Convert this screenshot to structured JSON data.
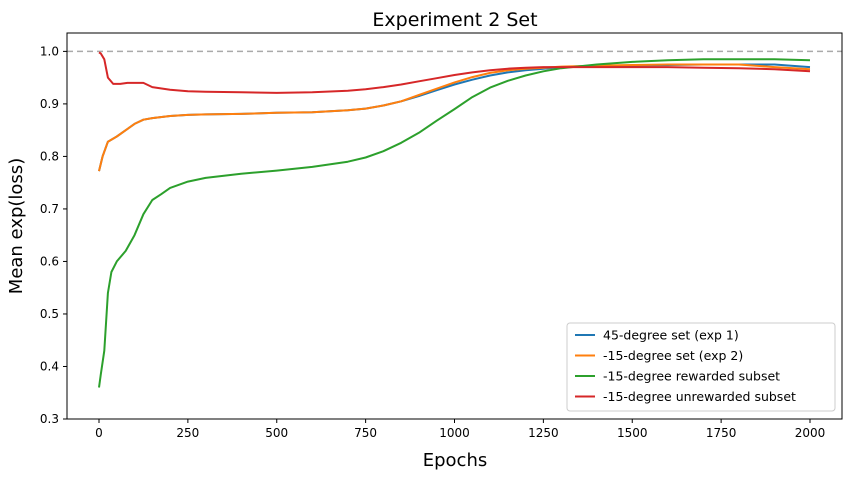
{
  "chart_data": {
    "type": "line",
    "title": "Experiment 2 Set",
    "xlabel": "Epochs",
    "ylabel": "Mean exp(loss)",
    "xlim": [
      -90,
      2090
    ],
    "ylim": [
      0.3,
      1.035
    ],
    "xticks": [
      0,
      250,
      500,
      750,
      1000,
      1250,
      1500,
      1750,
      2000
    ],
    "yticks": [
      0.3,
      0.4,
      0.5,
      0.6,
      0.7,
      0.8,
      0.9,
      1.0
    ],
    "xtick_labels": [
      "0",
      "250",
      "500",
      "750",
      "1000",
      "1250",
      "1500",
      "1750",
      "2000"
    ],
    "ytick_labels": [
      "0.3",
      "0.4",
      "0.5",
      "0.6",
      "0.7",
      "0.8",
      "0.9",
      "1.0"
    ],
    "reference_line": {
      "y": 1.0,
      "style": "dashed",
      "color": "#aaaaaa"
    },
    "grid": false,
    "legend_position": "bottom-right",
    "series": [
      {
        "name": "45-degree set (exp 1)",
        "color": "#1f77b4",
        "x": [
          0,
          10,
          25,
          50,
          75,
          100,
          125,
          150,
          200,
          250,
          300,
          400,
          500,
          600,
          700,
          750,
          800,
          850,
          900,
          950,
          1000,
          1050,
          1100,
          1150,
          1200,
          1250,
          1300,
          1400,
          1500,
          1600,
          1700,
          1800,
          1900,
          2000
        ],
        "y": [
          0.772,
          0.8,
          0.828,
          0.838,
          0.85,
          0.862,
          0.87,
          0.873,
          0.877,
          0.879,
          0.88,
          0.881,
          0.883,
          0.884,
          0.888,
          0.891,
          0.897,
          0.905,
          0.915,
          0.926,
          0.937,
          0.946,
          0.954,
          0.96,
          0.964,
          0.967,
          0.97,
          0.972,
          0.973,
          0.974,
          0.975,
          0.975,
          0.975,
          0.97
        ]
      },
      {
        "name": "-15-degree set (exp 2)",
        "color": "#ff7f0e",
        "x": [
          0,
          10,
          25,
          50,
          75,
          100,
          125,
          150,
          200,
          250,
          300,
          400,
          500,
          600,
          700,
          750,
          800,
          850,
          900,
          950,
          1000,
          1050,
          1100,
          1150,
          1200,
          1250,
          1300,
          1400,
          1500,
          1600,
          1700,
          1800,
          1900,
          2000
        ],
        "y": [
          0.772,
          0.8,
          0.828,
          0.838,
          0.85,
          0.862,
          0.87,
          0.873,
          0.877,
          0.879,
          0.88,
          0.881,
          0.883,
          0.884,
          0.888,
          0.891,
          0.897,
          0.905,
          0.917,
          0.929,
          0.941,
          0.951,
          0.959,
          0.964,
          0.967,
          0.969,
          0.971,
          0.973,
          0.974,
          0.975,
          0.975,
          0.975,
          0.97,
          0.966
        ]
      },
      {
        "name": "-15-degree rewarded subset",
        "color": "#2ca02c",
        "x": [
          0,
          5,
          15,
          25,
          35,
          50,
          75,
          100,
          125,
          150,
          175,
          200,
          250,
          300,
          400,
          500,
          600,
          700,
          750,
          800,
          850,
          900,
          950,
          1000,
          1050,
          1100,
          1150,
          1200,
          1250,
          1300,
          1400,
          1500,
          1600,
          1700,
          1800,
          1900,
          2000
        ],
        "y": [
          0.36,
          0.385,
          0.43,
          0.54,
          0.58,
          0.6,
          0.62,
          0.65,
          0.69,
          0.717,
          0.728,
          0.74,
          0.752,
          0.759,
          0.767,
          0.773,
          0.78,
          0.79,
          0.798,
          0.81,
          0.826,
          0.845,
          0.868,
          0.89,
          0.913,
          0.931,
          0.944,
          0.954,
          0.962,
          0.968,
          0.975,
          0.98,
          0.983,
          0.985,
          0.985,
          0.985,
          0.983
        ]
      },
      {
        "name": "-15-degree unrewarded subset",
        "color": "#d62728",
        "x": [
          0,
          5,
          15,
          25,
          40,
          60,
          80,
          100,
          125,
          150,
          200,
          250,
          300,
          400,
          500,
          600,
          700,
          750,
          800,
          850,
          900,
          950,
          1000,
          1050,
          1100,
          1150,
          1200,
          1250,
          1300,
          1400,
          1500,
          1600,
          1700,
          1800,
          1900,
          2000
        ],
        "y": [
          0.998,
          0.996,
          0.985,
          0.95,
          0.938,
          0.938,
          0.94,
          0.94,
          0.94,
          0.932,
          0.927,
          0.924,
          0.923,
          0.922,
          0.921,
          0.922,
          0.925,
          0.928,
          0.932,
          0.937,
          0.943,
          0.949,
          0.955,
          0.96,
          0.964,
          0.967,
          0.969,
          0.97,
          0.97,
          0.97,
          0.97,
          0.97,
          0.969,
          0.968,
          0.966,
          0.962
        ]
      }
    ]
  }
}
